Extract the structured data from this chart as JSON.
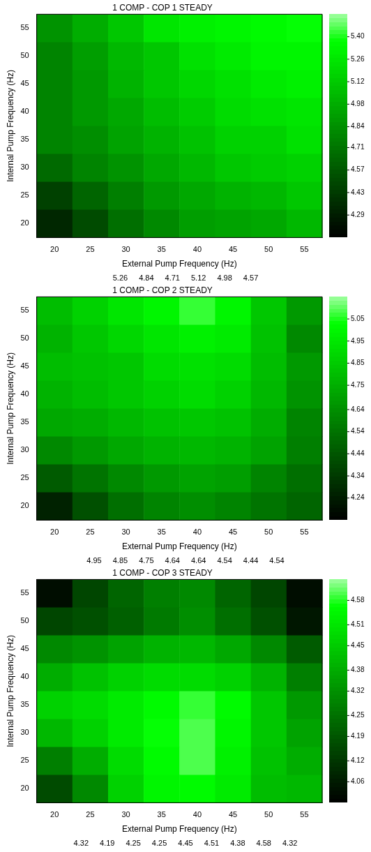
{
  "chart_data": [
    {
      "type": "heatmap",
      "title": "1 COMP - COP 1 STEADY",
      "xlabel": "External Pump Frequency (Hz)",
      "ylabel": "Internal Pump Frequency (Hz)",
      "categories": [
        "20",
        "25",
        "30",
        "35",
        "40",
        "45",
        "50",
        "55"
      ],
      "y_categories": [
        "55",
        "50",
        "45",
        "40",
        "35",
        "30",
        "25",
        "20"
      ],
      "cells": [
        [
          4.86,
          4.97,
          5.1,
          5.25,
          5.3,
          5.33,
          5.35,
          5.37
        ],
        [
          4.78,
          4.9,
          5.02,
          5.1,
          5.22,
          5.29,
          5.32,
          5.34
        ],
        [
          4.78,
          4.88,
          5.0,
          5.1,
          5.17,
          5.23,
          5.27,
          5.3
        ],
        [
          4.79,
          4.87,
          4.96,
          5.06,
          5.14,
          5.2,
          5.22,
          5.25
        ],
        [
          4.78,
          4.84,
          4.92,
          5.01,
          5.09,
          5.15,
          5.16,
          5.22
        ],
        [
          4.67,
          4.78,
          4.86,
          4.96,
          5.03,
          5.1,
          5.13,
          5.16
        ],
        [
          4.47,
          4.64,
          4.77,
          4.88,
          4.96,
          5.01,
          5.04,
          5.1
        ],
        [
          4.33,
          4.5,
          4.68,
          4.82,
          4.9,
          4.93,
          4.96,
          5.02
        ]
      ],
      "clim": [
        4.15,
        5.54
      ],
      "cticks": [
        4.29,
        4.43,
        4.57,
        4.71,
        4.84,
        4.98,
        5.12,
        5.26,
        {
          "value": 5.4,
          "label": "5.40"
        }
      ],
      "annotations": [
        "5.26",
        "4.84",
        "4.71",
        "5.12",
        "4.98",
        "4.57"
      ]
    },
    {
      "type": "heatmap",
      "title": "1 COMP - COP 2 STEADY",
      "xlabel": "External Pump Frequency (Hz)",
      "ylabel": "Internal Pump Frequency (Hz)",
      "categories": [
        "20",
        "25",
        "30",
        "35",
        "40",
        "45",
        "50",
        "55"
      ],
      "y_categories": [
        "55",
        "50",
        "45",
        "40",
        "35",
        "30",
        "25",
        "20"
      ],
      "cells": [
        [
          4.8,
          4.87,
          4.94,
          5.0,
          5.06,
          5.0,
          4.84,
          4.68
        ],
        [
          4.76,
          4.83,
          4.88,
          4.94,
          4.98,
          4.96,
          4.82,
          4.62
        ],
        [
          4.79,
          4.82,
          4.84,
          4.9,
          4.93,
          4.9,
          4.8,
          4.68
        ],
        [
          4.77,
          4.8,
          4.83,
          4.87,
          4.91,
          4.87,
          4.78,
          4.66
        ],
        [
          4.72,
          4.74,
          4.78,
          4.82,
          4.84,
          4.82,
          4.74,
          4.6
        ],
        [
          4.62,
          4.67,
          4.72,
          4.76,
          4.78,
          4.77,
          4.7,
          4.58
        ],
        [
          4.45,
          4.55,
          4.62,
          4.68,
          4.71,
          4.69,
          4.6,
          4.53
        ],
        [
          4.26,
          4.42,
          4.53,
          4.6,
          4.64,
          4.6,
          4.55,
          4.5
        ]
      ],
      "clim": [
        4.14,
        5.15
      ],
      "cticks": [
        4.24,
        4.34,
        4.44,
        4.54,
        4.64,
        4.75,
        4.85,
        4.95,
        5.05
      ],
      "annotations": [
        "4.95",
        "4.85",
        "4.75",
        "4.64",
        "4.64",
        "4.54",
        "4.44",
        "4.54"
      ]
    },
    {
      "type": "heatmap",
      "title": "1 COMP - COP 3 STEADY",
      "xlabel": "External Pump Frequency (Hz)",
      "ylabel": "Internal Pump Frequency (Hz)",
      "categories": [
        "20",
        "25",
        "30",
        "35",
        "40",
        "45",
        "50",
        "55"
      ],
      "y_categories": [
        "55",
        "50",
        "45",
        "40",
        "35",
        "30",
        "25",
        "20"
      ],
      "cells": [
        [
          4.03,
          4.15,
          4.22,
          4.28,
          4.3,
          4.22,
          4.15,
          4.03
        ],
        [
          4.15,
          4.18,
          4.21,
          4.27,
          4.31,
          4.25,
          4.18,
          4.05
        ],
        [
          4.3,
          4.33,
          4.36,
          4.39,
          4.4,
          4.37,
          4.3,
          4.2
        ],
        [
          4.38,
          4.43,
          4.46,
          4.48,
          4.49,
          4.46,
          4.39,
          4.28
        ],
        [
          4.46,
          4.48,
          4.52,
          4.56,
          4.59,
          4.56,
          4.44,
          4.34
        ],
        [
          4.4,
          4.46,
          4.52,
          4.57,
          4.6,
          4.54,
          4.44,
          4.36
        ],
        [
          4.28,
          4.38,
          4.48,
          4.56,
          4.6,
          4.53,
          4.43,
          4.38
        ],
        [
          4.17,
          4.3,
          4.46,
          4.54,
          4.56,
          4.52,
          4.42,
          4.4
        ]
      ],
      "clim": [
        4.0,
        4.64
      ],
      "cticks": [
        4.06,
        4.12,
        4.19,
        4.25,
        4.32,
        4.38,
        4.45,
        4.51,
        4.58
      ],
      "annotations": [
        "4.32",
        "4.19",
        "4.25",
        "4.25",
        "4.45",
        "4.51",
        "4.38",
        "4.58",
        "4.32"
      ]
    }
  ]
}
